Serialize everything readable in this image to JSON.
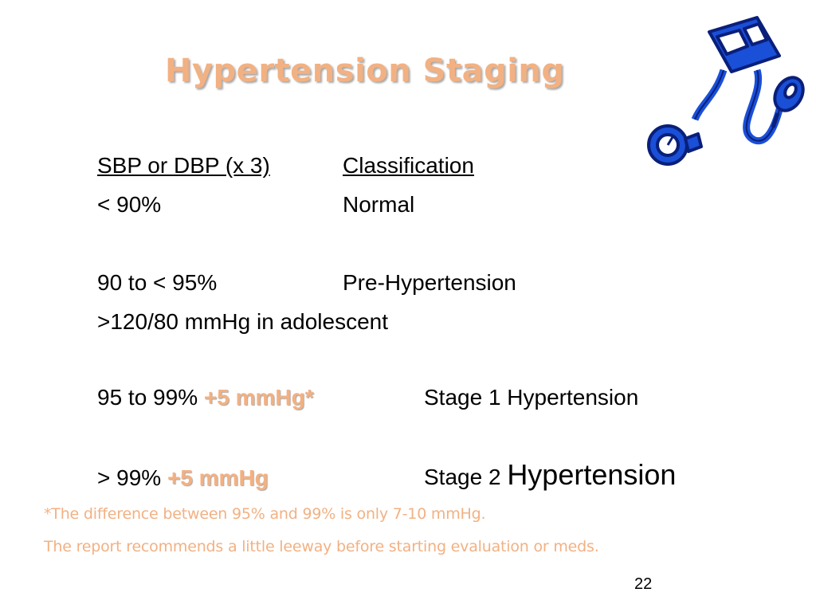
{
  "slide": {
    "title": "Hypertension Staging",
    "header": {
      "col1": "SBP or DBP  (x 3)",
      "col2": "Classification"
    },
    "rows": {
      "normal": {
        "range": "< 90%",
        "class": "Normal"
      },
      "prehtn": {
        "range": "90 to < 95%",
        "class": "Pre-Hypertension",
        "note": ">120/80 mmHg in adolescent"
      },
      "stage1": {
        "range": "95 to 99% ",
        "bonus": "+5 mmHg*",
        "class": "Stage 1 Hypertension"
      },
      "stage2": {
        "range": "> 99% ",
        "bonus": "+5 mmHg",
        "class_prefix": "Stage 2 ",
        "class_big": "Hypertension"
      }
    },
    "footnotes": {
      "line1": "*The difference between 95% and 99% is only 7-10 mmHg.",
      "line2": "The report recommends a little leeway before starting evaluation or meds."
    },
    "page_number": "22",
    "icon": "blood-pressure-cuff-icon",
    "colors": {
      "accent": "#f2b183",
      "clipart": "#1a4fd8"
    }
  }
}
